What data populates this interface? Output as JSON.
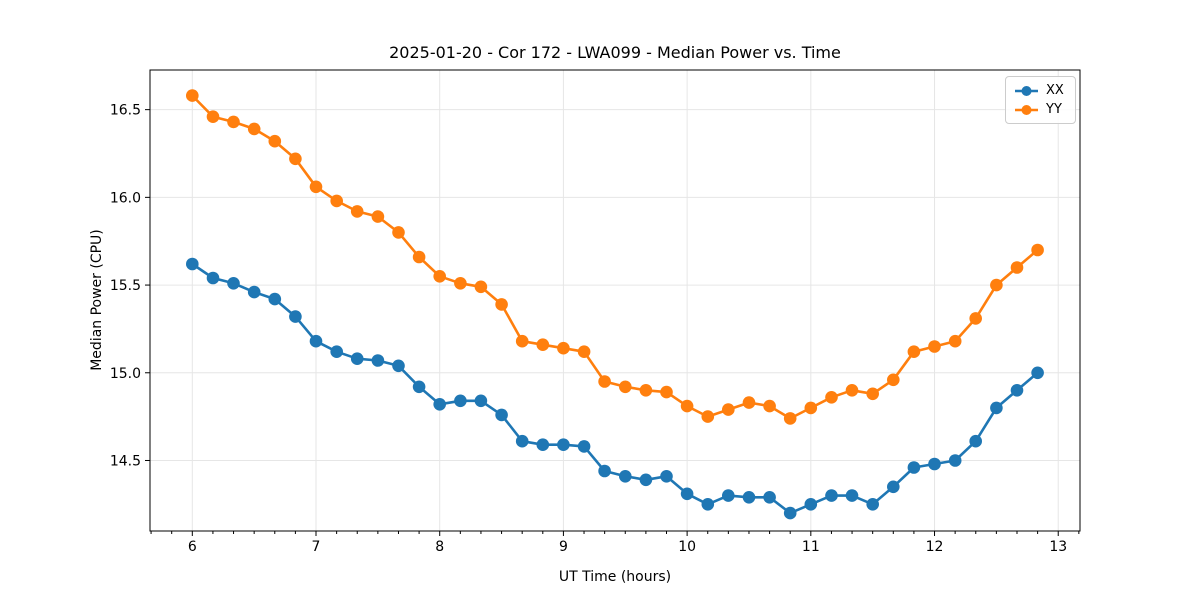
{
  "chart_data": {
    "type": "line",
    "title": "2025-01-20 - Cor 172 - LWA099 - Median Power vs. Time",
    "xlabel": "UT Time (hours)",
    "ylabel": "Median Power (CPU)",
    "xlim": [
      5.658,
      13.176
    ],
    "ylim": [
      14.098,
      16.726
    ],
    "xticks": [
      6,
      7,
      8,
      9,
      10,
      11,
      12,
      13
    ],
    "xtick_labels": [
      "6",
      "7",
      "8",
      "9",
      "10",
      "11",
      "12",
      "13"
    ],
    "yticks": [
      14.5,
      15.0,
      15.5,
      16.0,
      16.5
    ],
    "ytick_labels": [
      "14.5",
      "15.0",
      "15.5",
      "16.0",
      "16.5"
    ],
    "x_minor_divisions": 6,
    "grid": true,
    "grid_color": "#e6e6e6",
    "legend_position": "upper right",
    "x": [
      6.0,
      6.167,
      6.333,
      6.5,
      6.667,
      6.833,
      7.0,
      7.167,
      7.333,
      7.5,
      7.667,
      7.833,
      8.0,
      8.167,
      8.333,
      8.5,
      8.667,
      8.833,
      9.0,
      9.167,
      9.333,
      9.5,
      9.667,
      9.833,
      10.0,
      10.167,
      10.333,
      10.5,
      10.667,
      10.833,
      11.0,
      11.167,
      11.333,
      11.5,
      11.667,
      11.833,
      12.0,
      12.167,
      12.333,
      12.5,
      12.667,
      12.833
    ],
    "series": [
      {
        "name": "XX",
        "color": "#1f77b4",
        "values": [
          15.62,
          15.54,
          15.51,
          15.46,
          15.42,
          15.32,
          15.18,
          15.12,
          15.08,
          15.07,
          15.04,
          14.92,
          14.82,
          14.84,
          14.84,
          14.76,
          14.61,
          14.59,
          14.59,
          14.58,
          14.44,
          14.41,
          14.39,
          14.41,
          14.31,
          14.25,
          14.3,
          14.29,
          14.29,
          14.2,
          14.25,
          14.3,
          14.3,
          14.25,
          14.35,
          14.46,
          14.48,
          14.5,
          14.61,
          14.8,
          14.9,
          15.0
        ]
      },
      {
        "name": "YY",
        "color": "#ff7f0e",
        "values": [
          16.58,
          16.46,
          16.43,
          16.39,
          16.32,
          16.22,
          16.06,
          15.98,
          15.92,
          15.89,
          15.8,
          15.66,
          15.55,
          15.51,
          15.49,
          15.39,
          15.18,
          15.16,
          15.14,
          15.12,
          14.95,
          14.92,
          14.9,
          14.89,
          14.81,
          14.75,
          14.79,
          14.83,
          14.81,
          14.74,
          14.8,
          14.86,
          14.9,
          14.88,
          14.96,
          15.12,
          15.15,
          15.18,
          15.31,
          15.5,
          15.6,
          15.7
        ]
      }
    ]
  }
}
